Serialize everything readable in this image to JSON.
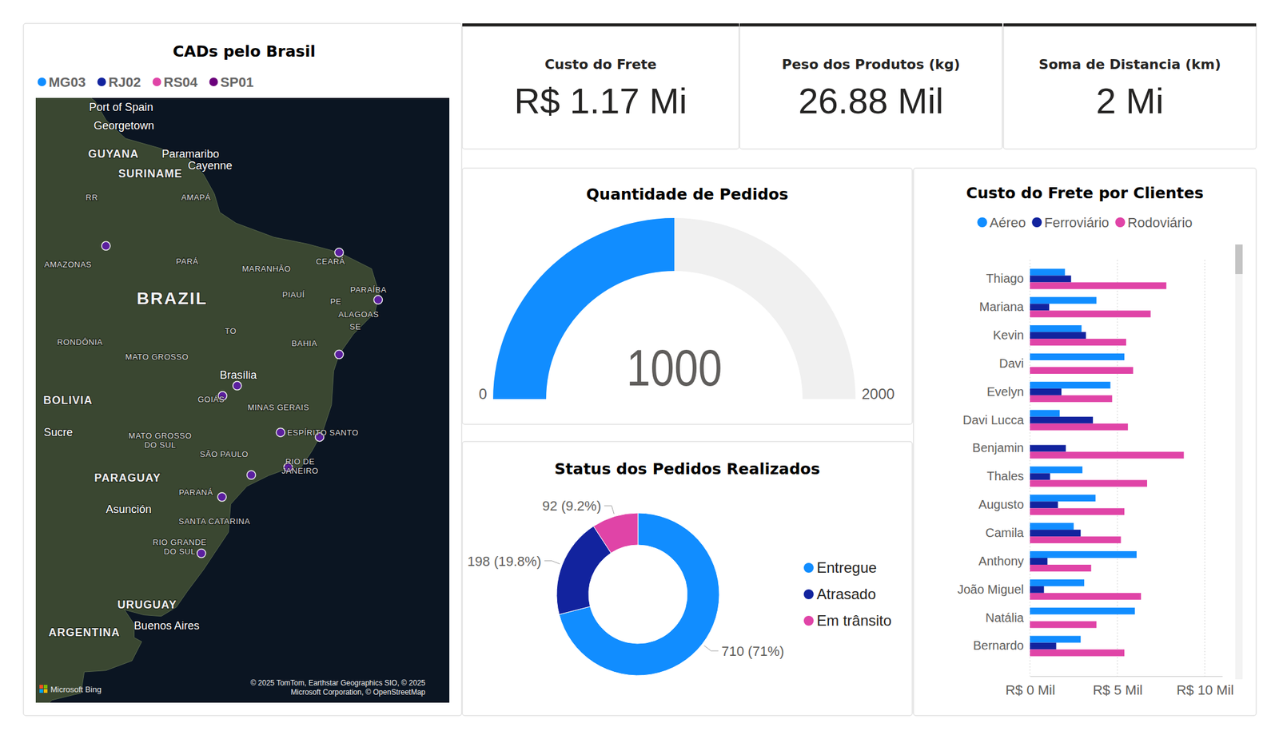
{
  "chart_data": [
    {
      "type": "map",
      "title": "CADs pelo Brasil",
      "series": [
        {
          "name": "MG03",
          "color": "#118DFF"
        },
        {
          "name": "RJ02",
          "color": "#12239E"
        },
        {
          "name": "RS04",
          "color": "#E044A7"
        },
        {
          "name": "SP01",
          "color": "#6B007B"
        }
      ],
      "points": [
        {
          "lon": -60.0,
          "lat": -3.1
        },
        {
          "lon": -38.5,
          "lat": -3.7
        },
        {
          "lon": -34.9,
          "lat": -8.05
        },
        {
          "lon": -38.5,
          "lat": -13.0
        },
        {
          "lon": -47.9,
          "lat": -15.8
        },
        {
          "lon": -49.25,
          "lat": -16.7
        },
        {
          "lon": -43.9,
          "lat": -19.9
        },
        {
          "lon": -40.3,
          "lat": -20.3
        },
        {
          "lon": -43.2,
          "lat": -22.9
        },
        {
          "lon": -46.6,
          "lat": -23.55
        },
        {
          "lon": -49.3,
          "lat": -25.4
        },
        {
          "lon": -51.2,
          "lat": -30.0
        }
      ],
      "labels": {
        "main_country": [
          {
            "text": "BRAZIL",
            "lon": -53.9,
            "lat": -7.9
          }
        ],
        "countries": [
          {
            "text": "GUYANA",
            "lon": -59.3,
            "lat": 5.4
          },
          {
            "text": "SURINAME",
            "lon": -55.9,
            "lat": 3.6
          },
          {
            "text": "BOLIVIA",
            "lon": -63.5,
            "lat": -17.1
          },
          {
            "text": "PARAGUAY",
            "lon": -58.0,
            "lat": -23.8
          },
          {
            "text": "URUGUAY",
            "lon": -56.2,
            "lat": -34.0
          },
          {
            "text": "ARGENTINA",
            "lon": -62.0,
            "lat": -36.1
          }
        ],
        "states": [
          {
            "text": "RR",
            "lon": -61.3,
            "lat": 1.4
          },
          {
            "text": "AMAPÁ",
            "lon": -51.7,
            "lat": 1.4
          },
          {
            "text": "AMAZONAS",
            "lon": -63.5,
            "lat": -4.8
          },
          {
            "text": "PARÁ",
            "lon": -52.5,
            "lat": -4.5
          },
          {
            "text": "MARANHÃO",
            "lon": -45.2,
            "lat": -5.2
          },
          {
            "text": "CEARÁ",
            "lon": -39.3,
            "lat": -4.5
          },
          {
            "text": "PARAÍBA",
            "lon": -35.8,
            "lat": -7.1
          },
          {
            "text": "PIAUÍ",
            "lon": -42.7,
            "lat": -7.6
          },
          {
            "text": "PE",
            "lon": -38.8,
            "lat": -8.2
          },
          {
            "text": "ALAGOAS",
            "lon": -36.7,
            "lat": -9.4
          },
          {
            "text": "SE",
            "lon": -37.0,
            "lat": -10.5
          },
          {
            "text": "RONDÔNIA",
            "lon": -62.4,
            "lat": -11.9
          },
          {
            "text": "MATO GROSSO",
            "lon": -55.3,
            "lat": -13.2
          },
          {
            "text": "TO",
            "lon": -48.5,
            "lat": -10.9
          },
          {
            "text": "BAHIA",
            "lon": -41.7,
            "lat": -12.0
          },
          {
            "text": "GOIÁS",
            "lon": -50.3,
            "lat": -17.0
          },
          {
            "text": "MINAS GERAIS",
            "lon": -44.1,
            "lat": -17.7
          },
          {
            "text": "ESPÍRITO SANTO",
            "lon": -40.0,
            "lat": -19.9
          },
          {
            "text": [
              "MATO GROSSO",
              "DO SUL"
            ],
            "lon": -55.0,
            "lat": -20.6
          },
          {
            "text": "SÃO PAULO",
            "lon": -49.1,
            "lat": -21.8
          },
          {
            "text": [
              "RIO DE",
              "JANEIRO"
            ],
            "lon": -42.1,
            "lat": -22.8
          },
          {
            "text": "PARANÁ",
            "lon": -51.7,
            "lat": -25.0
          },
          {
            "text": "SANTA CATARINA",
            "lon": -50.0,
            "lat": -27.4
          },
          {
            "text": [
              "RIO GRANDE",
              "DO SUL"
            ],
            "lon": -53.2,
            "lat": -29.5
          }
        ],
        "cities": [
          {
            "text": "Port of Spain",
            "lon": -58.6,
            "lat": 9.7
          },
          {
            "text": "Georgetown",
            "lon": -58.35,
            "lat": 8.0
          },
          {
            "text": "Paramaribo",
            "lon": -52.2,
            "lat": 5.4
          },
          {
            "text": "Cayenne",
            "lon": -50.4,
            "lat": 4.3
          },
          {
            "text": "Brasília",
            "lon": -47.8,
            "lat": -14.85
          },
          {
            "text": "Sucre",
            "lon": -64.4,
            "lat": -19.9
          },
          {
            "text": "Asunción",
            "lon": -57.9,
            "lat": -26.4
          },
          {
            "text": "Buenos Aires",
            "lon": -54.4,
            "lat": -35.6
          }
        ]
      },
      "provider": "Microsoft Bing",
      "attribution": [
        "© 2025 TomTom, Earthstar Geographics SIO, © 2025",
        "Microsoft Corporation, © OpenStreetMap"
      ]
    },
    {
      "type": "card",
      "title": "Custo do Frete",
      "values": [
        1170000
      ],
      "value_labels": [
        "R$ 1.17 Mi"
      ]
    },
    {
      "type": "card",
      "title": "Peso dos Produtos (kg)",
      "values": [
        26880
      ],
      "value_labels": [
        "26.88 Mil"
      ]
    },
    {
      "type": "card",
      "title": "Soma de Distancia (km)",
      "values": [
        2000000
      ],
      "value_labels": [
        "2 Mi"
      ]
    },
    {
      "type": "gauge",
      "title": "Quantidade de Pedidos",
      "values": [
        1000
      ],
      "ylim": [
        0,
        2000
      ],
      "yticks": [
        0,
        2000
      ],
      "color": "#118DFF"
    },
    {
      "type": "pie",
      "title": "Status dos Pedidos Realizados",
      "categories": [
        "Entregue",
        "Atrasado",
        "Em trânsito"
      ],
      "values": [
        710,
        198,
        92
      ],
      "value_labels": [
        "710 (71%)",
        "198 (19.8%)",
        "92 (9.2%)"
      ],
      "colors": [
        "#118DFF",
        "#12239E",
        "#E044A7"
      ],
      "data_labels": true,
      "legend": "right"
    },
    {
      "type": "bar",
      "orientation": "horizontal",
      "title": "Custo do Frete por Clientes",
      "categories": [
        "Thiago",
        "Mariana",
        "Kevin",
        "Davi",
        "Evelyn",
        "Davi Lucca",
        "Benjamin",
        "Thales",
        "Augusto",
        "Camila",
        "Anthony",
        "João Miguel",
        "Natália",
        "Bernardo"
      ],
      "series": [
        {
          "name": "Aéreo",
          "color": "#118DFF",
          "values": [
            2000,
            3800,
            2950,
            5400,
            4600,
            1700,
            null,
            3000,
            3750,
            2500,
            6100,
            3100,
            6000,
            2900
          ]
        },
        {
          "name": "Ferroviário",
          "color": "#12239E",
          "values": [
            2350,
            1100,
            3200,
            null,
            1800,
            3600,
            2050,
            1150,
            1600,
            2900,
            1000,
            800,
            null,
            1500
          ]
        },
        {
          "name": "Rodoviário",
          "color": "#E044A7",
          "values": [
            7800,
            6900,
            5500,
            5900,
            4700,
            5600,
            8800,
            6700,
            5400,
            5200,
            3500,
            6350,
            3800,
            5400
          ]
        }
      ],
      "xlim": [
        0,
        11000
      ],
      "xticks": [
        {
          "value": 0,
          "label": "R$ 0 Mil"
        },
        {
          "value": 5000,
          "label": "R$ 5 Mil"
        },
        {
          "value": 10000,
          "label": "R$ 10 Mil"
        }
      ],
      "grid": true,
      "legend": "top"
    }
  ]
}
